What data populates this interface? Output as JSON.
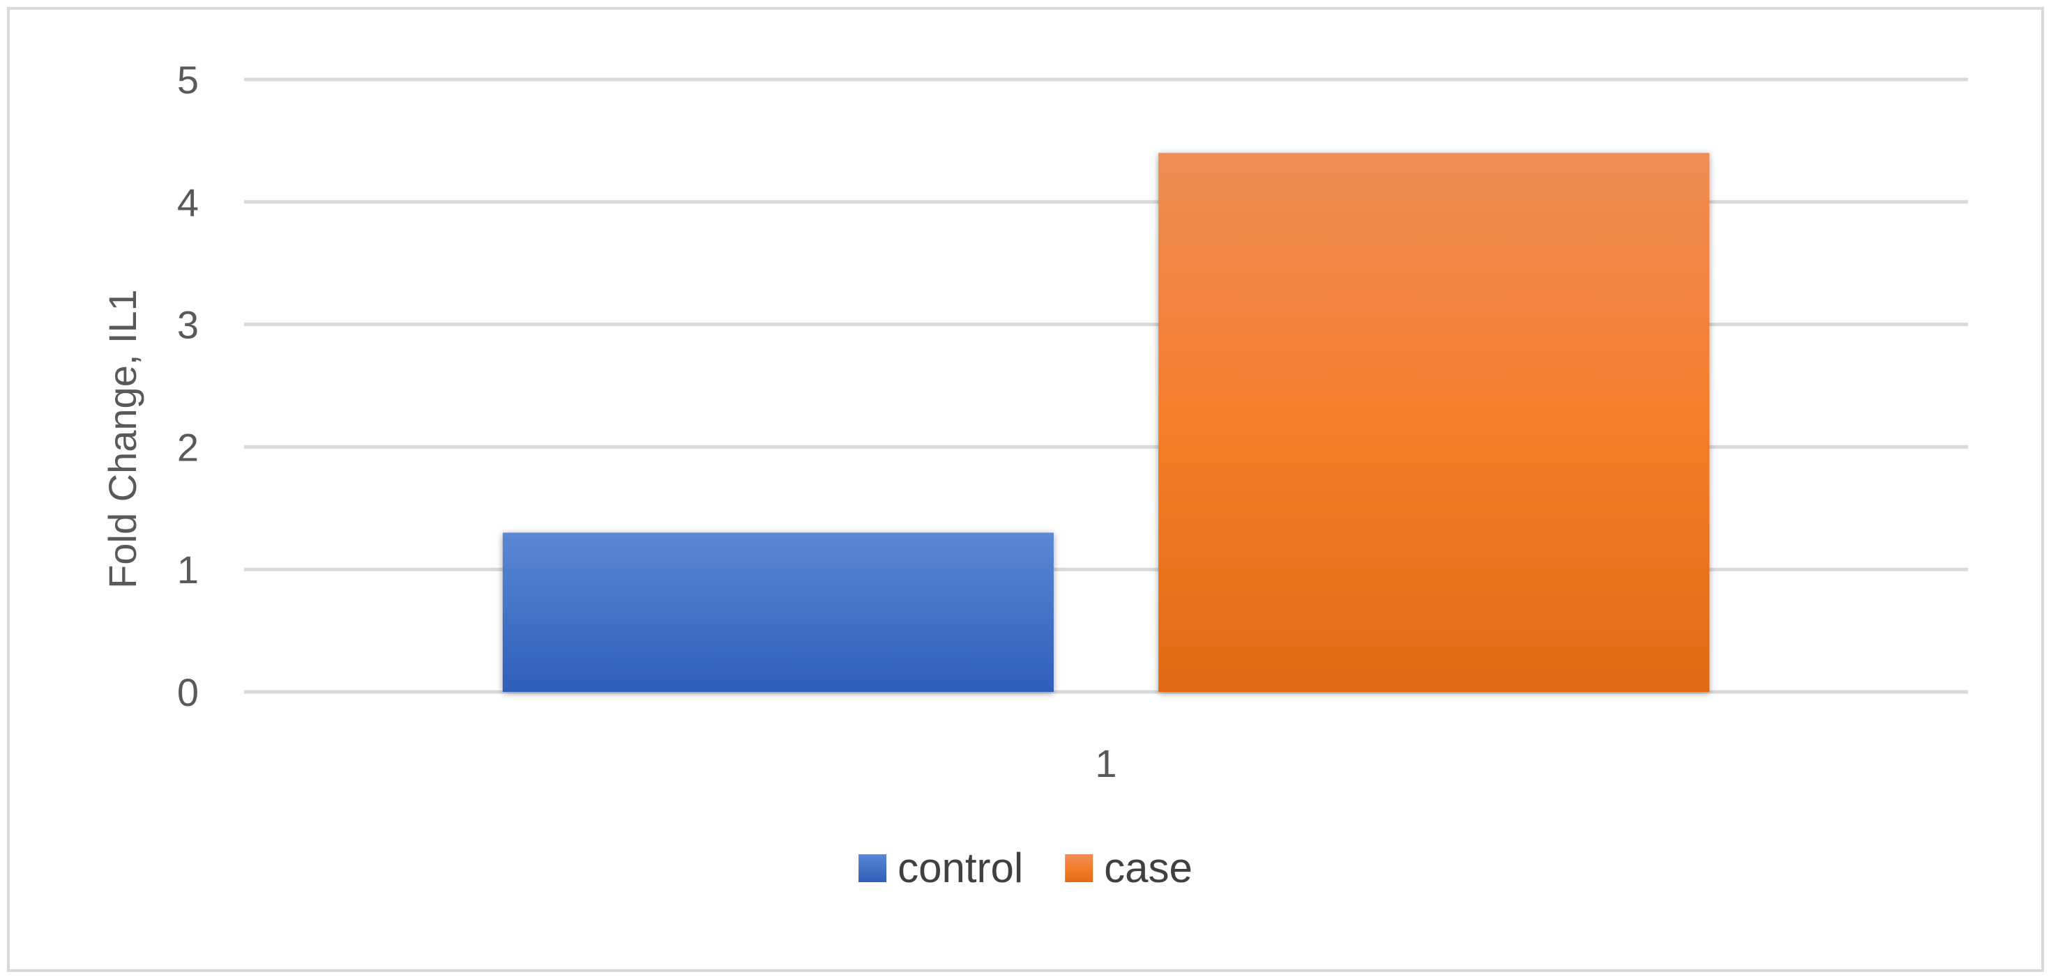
{
  "chart_data": {
    "type": "bar",
    "categories": [
      "1"
    ],
    "series": [
      {
        "name": "control",
        "values": [
          1.3
        ],
        "color": "#4472C4"
      },
      {
        "name": "case",
        "values": [
          4.4
        ],
        "color": "#ED7D31"
      }
    ],
    "ylabel": "Fold Change, IL1",
    "xlabel": "",
    "ylim": [
      0,
      5
    ],
    "yticks": [
      0,
      1,
      2,
      3,
      4,
      5
    ],
    "grid": true,
    "legend_position": "bottom-center"
  }
}
